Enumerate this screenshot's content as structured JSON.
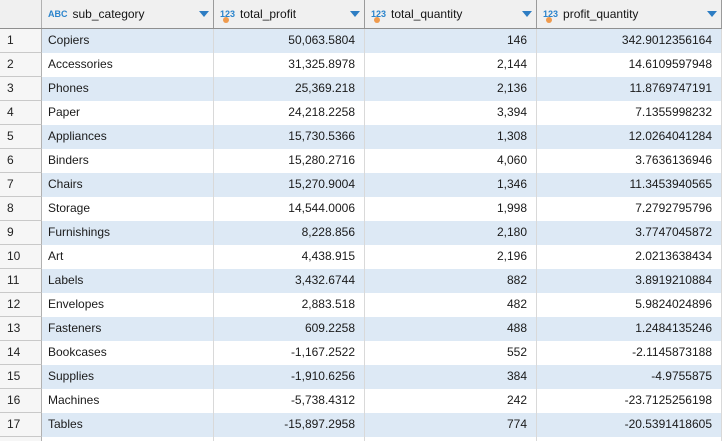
{
  "grid": {
    "columns": [
      {
        "type_icon": "ABC",
        "label": "sub_category",
        "type": "string",
        "has_order_dot": false
      },
      {
        "type_icon": "123",
        "label": "total_profit",
        "type": "numeric",
        "has_order_dot": true
      },
      {
        "type_icon": "123",
        "label": "total_quantity",
        "type": "numeric",
        "has_order_dot": true
      },
      {
        "type_icon": "123",
        "label": "profit_quantity",
        "type": "numeric",
        "has_order_dot": true
      }
    ],
    "rows": [
      {
        "num": "1",
        "sub_category": "Copiers",
        "total_profit": "50,063.5804",
        "total_quantity": "146",
        "profit_quantity": "342.9012356164"
      },
      {
        "num": "2",
        "sub_category": "Accessories",
        "total_profit": "31,325.8978",
        "total_quantity": "2,144",
        "profit_quantity": "14.6109597948"
      },
      {
        "num": "3",
        "sub_category": "Phones",
        "total_profit": "25,369.218",
        "total_quantity": "2,136",
        "profit_quantity": "11.8769747191"
      },
      {
        "num": "4",
        "sub_category": "Paper",
        "total_profit": "24,218.2258",
        "total_quantity": "3,394",
        "profit_quantity": "7.1355998232"
      },
      {
        "num": "5",
        "sub_category": "Appliances",
        "total_profit": "15,730.5366",
        "total_quantity": "1,308",
        "profit_quantity": "12.0264041284"
      },
      {
        "num": "6",
        "sub_category": "Binders",
        "total_profit": "15,280.2716",
        "total_quantity": "4,060",
        "profit_quantity": "3.7636136946"
      },
      {
        "num": "7",
        "sub_category": "Chairs",
        "total_profit": "15,270.9004",
        "total_quantity": "1,346",
        "profit_quantity": "11.3453940565"
      },
      {
        "num": "8",
        "sub_category": "Storage",
        "total_profit": "14,544.0006",
        "total_quantity": "1,998",
        "profit_quantity": "7.2792795796"
      },
      {
        "num": "9",
        "sub_category": "Furnishings",
        "total_profit": "8,228.856",
        "total_quantity": "2,180",
        "profit_quantity": "3.7747045872"
      },
      {
        "num": "10",
        "sub_category": "Art",
        "total_profit": "4,438.915",
        "total_quantity": "2,196",
        "profit_quantity": "2.0213638434"
      },
      {
        "num": "11",
        "sub_category": "Labels",
        "total_profit": "3,432.6744",
        "total_quantity": "882",
        "profit_quantity": "3.8919210884"
      },
      {
        "num": "12",
        "sub_category": "Envelopes",
        "total_profit": "2,883.518",
        "total_quantity": "482",
        "profit_quantity": "5.9824024896"
      },
      {
        "num": "13",
        "sub_category": "Fasteners",
        "total_profit": "609.2258",
        "total_quantity": "488",
        "profit_quantity": "1.2484135246"
      },
      {
        "num": "14",
        "sub_category": "Bookcases",
        "total_profit": "-1,167.2522",
        "total_quantity": "552",
        "profit_quantity": "-2.1145873188"
      },
      {
        "num": "15",
        "sub_category": "Supplies",
        "total_profit": "-1,910.6256",
        "total_quantity": "384",
        "profit_quantity": "-4.9755875"
      },
      {
        "num": "16",
        "sub_category": "Machines",
        "total_profit": "-5,738.4312",
        "total_quantity": "242",
        "profit_quantity": "-23.7125256198"
      },
      {
        "num": "17",
        "sub_category": "Tables",
        "total_profit": "-15,897.2958",
        "total_quantity": "774",
        "profit_quantity": "-20.5391418605"
      }
    ]
  },
  "colors": {
    "accent_blue": "#2d7dc3",
    "icon_blue": "#2b84cc",
    "order_dot_orange": "#ef9a4d",
    "stripe_row": "#dde9f5",
    "header_bg": "#f0f0f0",
    "gutter_bg": "#f6f6f6",
    "header_border": "#8f8f8f",
    "cell_border": "#d9d9d9"
  }
}
